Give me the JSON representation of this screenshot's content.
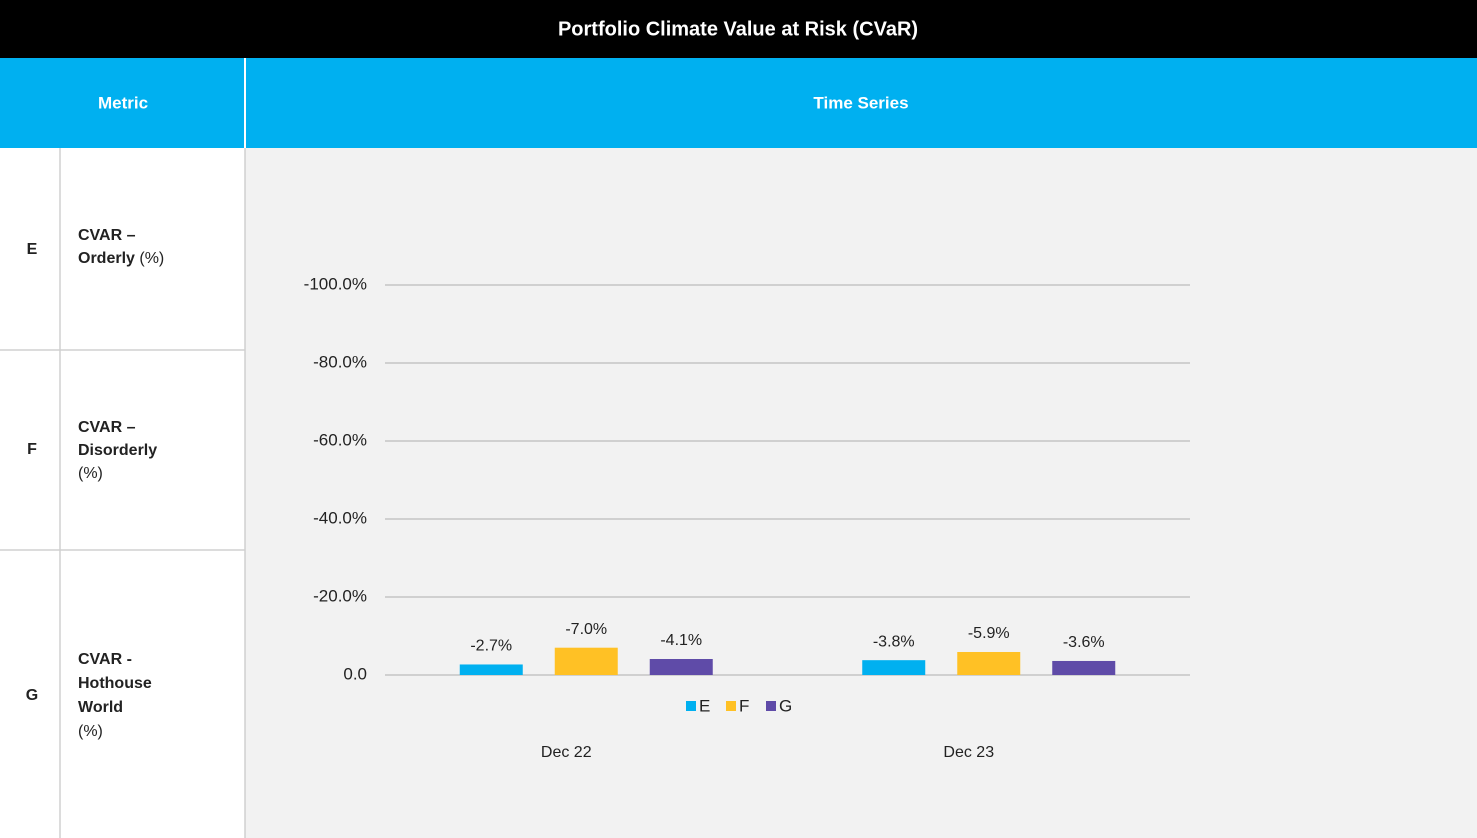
{
  "header": {
    "title": "Portfolio Climate Value at Risk (CVaR)"
  },
  "table": {
    "columns": [
      "Metric",
      "Time Series"
    ],
    "rows": [
      {
        "letter": "E",
        "name": [
          "CVAR –",
          "Orderly"
        ],
        "unit": "(%)"
      },
      {
        "letter": "F",
        "name": [
          "CVAR –",
          "Disorderly"
        ],
        "unit": "(%)"
      },
      {
        "letter": "G",
        "name": [
          "CVAR -",
          "Hothouse",
          "World"
        ],
        "unit": "(%)"
      }
    ]
  },
  "chart_data": {
    "type": "bar",
    "categories": [
      "Dec 22",
      "Dec 23"
    ],
    "series": [
      {
        "name": "E",
        "color": "#00b0f0",
        "values": [
          -2.7,
          -3.8
        ],
        "value_labels": [
          "-2.7%",
          "-3.8%"
        ]
      },
      {
        "name": "F",
        "color": "#ffc125",
        "values": [
          -7.0,
          -5.9
        ],
        "value_labels": [
          "-7.0%",
          "-5.9%"
        ]
      },
      {
        "name": "G",
        "color": "#5f4ba8",
        "values": [
          -4.1,
          -3.6
        ],
        "value_labels": [
          "-4.1%",
          "-3.6%"
        ]
      }
    ],
    "ylim": [
      0,
      -100
    ],
    "yticks": [
      {
        "value": 0,
        "label": "0.0"
      },
      {
        "value": -20,
        "label": "-20.0%"
      },
      {
        "value": -40,
        "label": "-40.0%"
      },
      {
        "value": -60,
        "label": "-60.0%"
      },
      {
        "value": -80,
        "label": "-80.0%"
      },
      {
        "value": -100,
        "label": "-100.0%"
      }
    ],
    "grid": true,
    "legend": "bottom"
  }
}
